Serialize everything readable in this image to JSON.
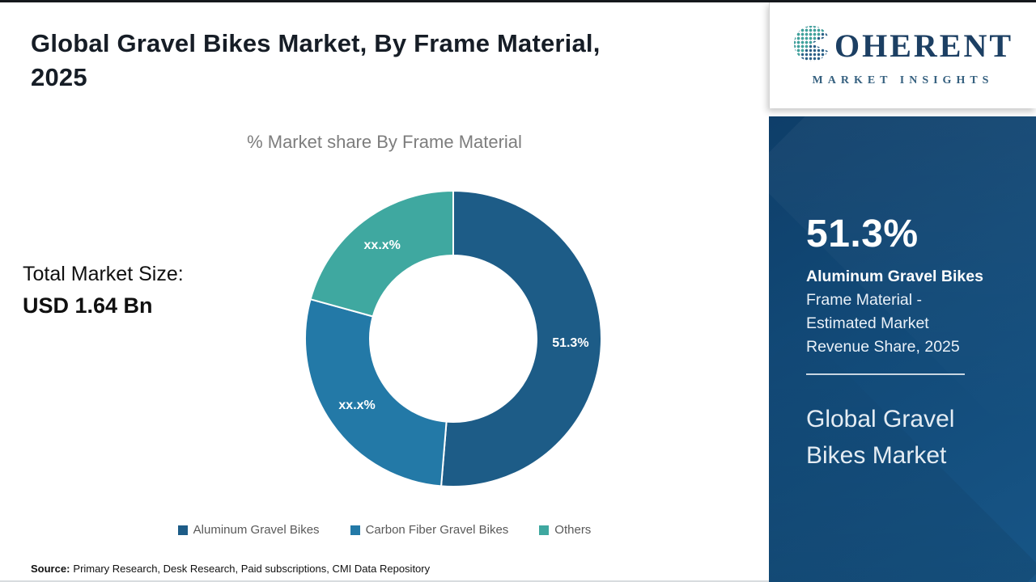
{
  "header": {
    "title_line1": "Global Gravel Bikes Market, By Frame Material,",
    "title_line2": "2025"
  },
  "logo": {
    "wordmark_first_letter": "C",
    "wordmark_rest": "OHERENT",
    "tagline": "MARKET INSIGHTS"
  },
  "stats": {
    "total_label": "Total Market Size:",
    "total_value": "USD 1.64 Bn"
  },
  "chart_data": {
    "type": "pie",
    "variant": "donut",
    "title": "% Market share By Frame Material",
    "start_angle_deg": 0,
    "direction": "clockwise",
    "legend_position": "bottom",
    "segments": [
      {
        "name": "Aluminum Gravel Bikes",
        "value": 51.3,
        "display_label": "51.3%",
        "color": "#1d5c87"
      },
      {
        "name": "Carbon Fiber Gravel Bikes",
        "value": 28.0,
        "display_label": "xx.x%",
        "color": "#2379a7"
      },
      {
        "name": "Others",
        "value": 20.7,
        "display_label": "xx.x%",
        "color": "#3fa8a0"
      }
    ]
  },
  "side_panel": {
    "stat_value": "51.3%",
    "stat_title": "Aluminum Gravel Bikes",
    "stat_lines": [
      "Frame Material -",
      "Estimated Market",
      "Revenue Share, 2025"
    ],
    "market_line1": "Global Gravel",
    "market_line2": "Bikes Market"
  },
  "footer": {
    "source_label": "Source:",
    "source_text": "Primary Research, Desk Research, Paid subscriptions, CMI Data Repository"
  }
}
